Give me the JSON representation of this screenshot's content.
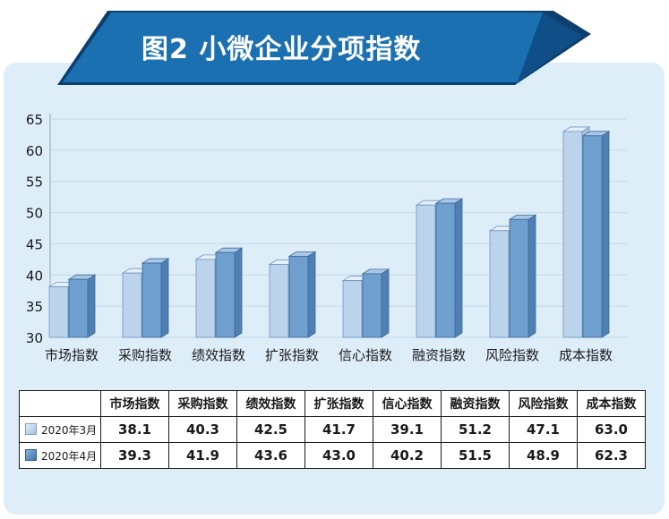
{
  "title": "图2 小微企业分项指数",
  "colors": {
    "banner": "#1a70b0",
    "banner_dark": "#0d3f6e",
    "panel": "#deeef9",
    "series_march": "#bcd3ec",
    "series_april": "#6e9fcf"
  },
  "chart_data": {
    "type": "bar",
    "title": "图2 小微企业分项指数",
    "categories": [
      "市场指数",
      "采购指数",
      "绩效指数",
      "扩张指数",
      "信心指数",
      "融资指数",
      "风险指数",
      "成本指数"
    ],
    "series": [
      {
        "name": "2020年3月",
        "values": [
          38.1,
          40.3,
          42.5,
          41.7,
          39.1,
          51.2,
          47.1,
          63.0
        ]
      },
      {
        "name": "2020年4月",
        "values": [
          39.3,
          41.9,
          43.6,
          43.0,
          40.2,
          51.5,
          48.9,
          62.3
        ]
      }
    ],
    "y_ticks": [
      30,
      35,
      40,
      45,
      50,
      55,
      60,
      65
    ],
    "ylim": [
      30,
      65
    ],
    "grid": true
  },
  "table": {
    "corner": "",
    "rows": [
      {
        "label": "2020年3月",
        "values": [
          "38.1",
          "40.3",
          "42.5",
          "41.7",
          "39.1",
          "51.2",
          "47.1",
          "63.0"
        ]
      },
      {
        "label": "2020年4月",
        "values": [
          "39.3",
          "41.9",
          "43.6",
          "43.0",
          "40.2",
          "51.5",
          "48.9",
          "62.3"
        ]
      }
    ]
  }
}
